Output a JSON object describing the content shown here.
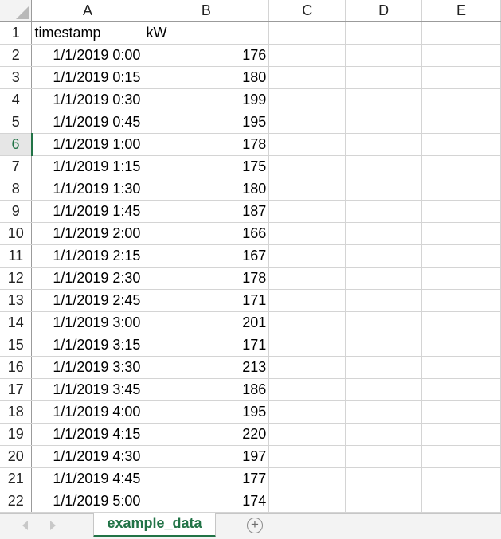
{
  "columns": [
    "A",
    "B",
    "C",
    "D",
    "E"
  ],
  "rows": [
    {
      "num": "1",
      "a": "timestamp",
      "b": "kW"
    },
    {
      "num": "2",
      "a": "1/1/2019 0:00",
      "b": "176"
    },
    {
      "num": "3",
      "a": "1/1/2019 0:15",
      "b": "180"
    },
    {
      "num": "4",
      "a": "1/1/2019 0:30",
      "b": "199"
    },
    {
      "num": "5",
      "a": "1/1/2019 0:45",
      "b": "195"
    },
    {
      "num": "6",
      "a": "1/1/2019 1:00",
      "b": "178"
    },
    {
      "num": "7",
      "a": "1/1/2019 1:15",
      "b": "175"
    },
    {
      "num": "8",
      "a": "1/1/2019 1:30",
      "b": "180"
    },
    {
      "num": "9",
      "a": "1/1/2019 1:45",
      "b": "187"
    },
    {
      "num": "10",
      "a": "1/1/2019 2:00",
      "b": "166"
    },
    {
      "num": "11",
      "a": "1/1/2019 2:15",
      "b": "167"
    },
    {
      "num": "12",
      "a": "1/1/2019 2:30",
      "b": "178"
    },
    {
      "num": "13",
      "a": "1/1/2019 2:45",
      "b": "171"
    },
    {
      "num": "14",
      "a": "1/1/2019 3:00",
      "b": "201"
    },
    {
      "num": "15",
      "a": "1/1/2019 3:15",
      "b": "171"
    },
    {
      "num": "16",
      "a": "1/1/2019 3:30",
      "b": "213"
    },
    {
      "num": "17",
      "a": "1/1/2019 3:45",
      "b": "186"
    },
    {
      "num": "18",
      "a": "1/1/2019 4:00",
      "b": "195"
    },
    {
      "num": "19",
      "a": "1/1/2019 4:15",
      "b": "220"
    },
    {
      "num": "20",
      "a": "1/1/2019 4:30",
      "b": "197"
    },
    {
      "num": "21",
      "a": "1/1/2019 4:45",
      "b": "177"
    },
    {
      "num": "22",
      "a": "1/1/2019 5:00",
      "b": "174"
    }
  ],
  "active_row": "6",
  "sheet_tab": {
    "label": "example_data"
  },
  "add_sheet": {
    "symbol": "+"
  },
  "icons": {
    "prev": "triangle-left-icon",
    "next": "triangle-right-icon",
    "add": "plus-circle-icon"
  },
  "colors": {
    "accent": "#217346"
  }
}
